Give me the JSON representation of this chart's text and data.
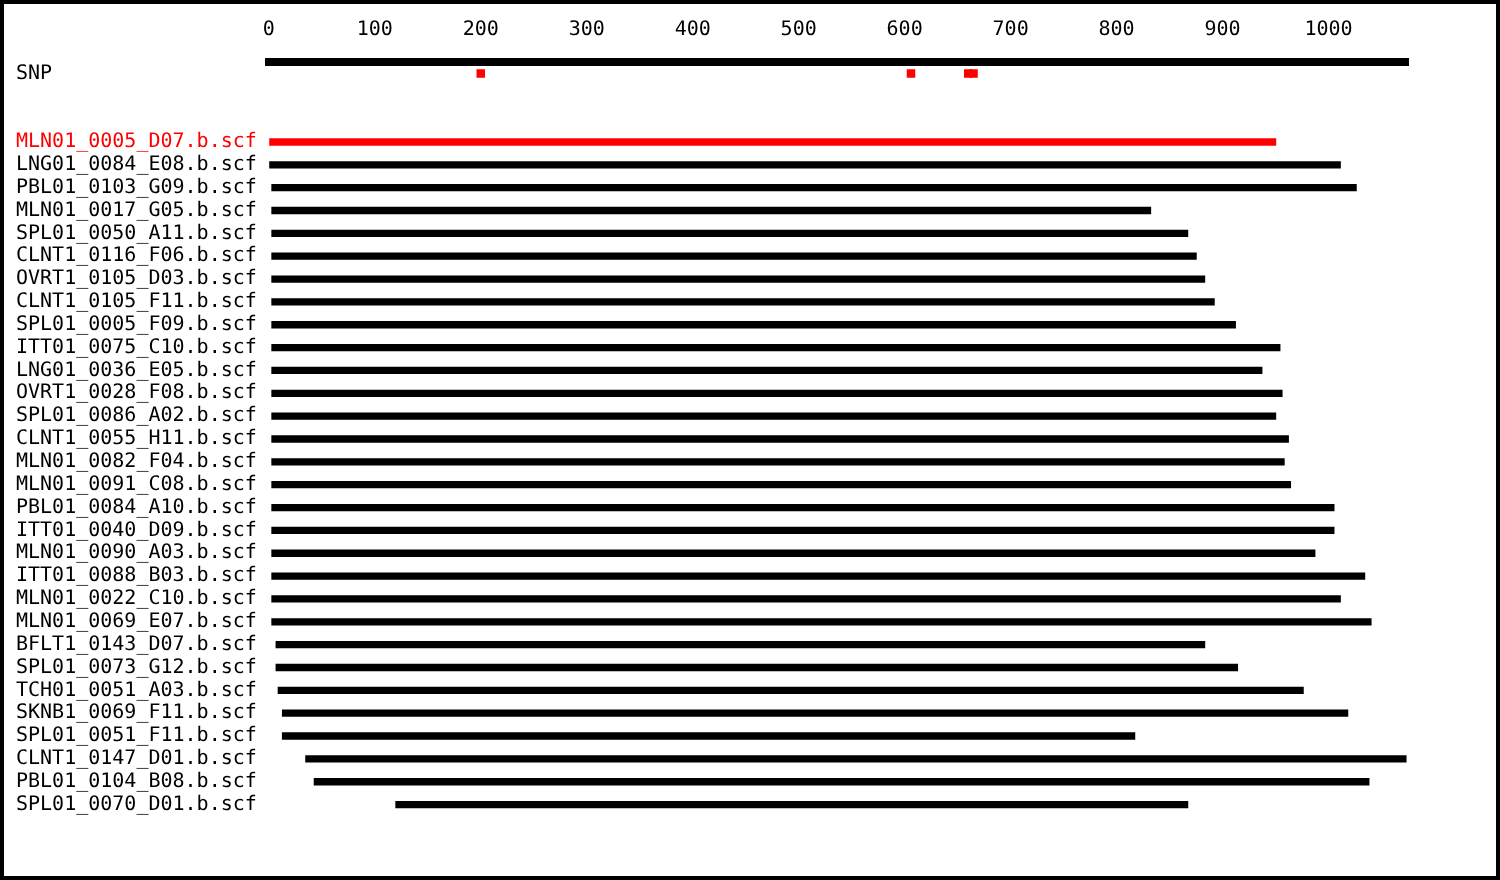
{
  "chart_data": {
    "type": "bar",
    "orientation": "horizontal",
    "grid": false,
    "legend": false,
    "marker": "square",
    "categories": [
      "SNP",
      null,
      null,
      "MLN01_0005_D07.b.scf",
      "LNG01_0084_E08.b.scf",
      "PBL01_0103_G09.b.scf",
      "MLN01_0017_G05.b.scf",
      "SPL01_0050_A11.b.scf",
      "CLNT1_0116_F06.b.scf",
      "OVRT1_0105_D03.b.scf",
      "CLNT1_0105_F11.b.scf",
      "SPL01_0005_F09.b.scf",
      "ITT01_0075_C10.b.scf",
      "LNG01_0036_E05.b.scf",
      "OVRT1_0028_F08.b.scf",
      "SPL01_0086_A02.b.scf",
      "CLNT1_0055_H11.b.scf",
      "MLN01_0082_F04.b.scf",
      "MLN01_0091_C08.b.scf",
      "PBL01_0084_A10.b.scf",
      "ITT01_0040_D09.b.scf",
      "MLN01_0090_A03.b.scf",
      "ITT01_0088_B03.b.scf",
      "MLN01_0022_C10.b.scf",
      "MLN01_0069_E07.b.scf",
      "BFLT1_0143_D07.b.scf",
      "SPL01_0073_G12.b.scf",
      "TCH01_0051_A03.b.scf",
      "SKNB1_0069_F11.b.scf",
      "SPL01_0051_F11.b.scf",
      "CLNT1_0147_D01.b.scf",
      "PBL01_0104_B08.b.scf",
      "SPL01_0070_D01.b.scf"
    ],
    "xlim": [
      0,
      1075
    ],
    "xticks": [
      0,
      100,
      200,
      300,
      400,
      500,
      600,
      700,
      800,
      900,
      1000
    ],
    "series": [
      {
        "base": [
          null,
          null,
          null,
          1,
          1,
          3,
          3,
          3,
          3,
          3,
          3,
          3,
          3,
          3,
          3,
          3,
          3,
          3,
          3,
          3,
          3,
          3,
          3,
          3,
          3,
          7,
          7,
          9,
          13,
          13,
          35,
          43,
          120
        ],
        "values": [
          null,
          null,
          null,
          949,
          1010,
          1023,
          829,
          864,
          872,
          880,
          889,
          909,
          951,
          934,
          953,
          947,
          959,
          955,
          961,
          1002,
          1002,
          984,
          1031,
          1008,
          1037,
          876,
          907,
          967,
          1005,
          804,
          1038,
          995,
          747
        ],
        "colors": [
          "#000000",
          "#000000",
          "#000000",
          "#ff0000",
          "#000000",
          "#000000",
          "#000000",
          "#000000",
          "#000000",
          "#000000",
          "#000000",
          "#000000",
          "#000000",
          "#000000",
          "#000000",
          "#000000",
          "#000000",
          "#000000",
          "#000000",
          "#000000",
          "#000000",
          "#000000",
          "#000000",
          "#000000",
          "#000000",
          "#000000",
          "#000000",
          "#000000",
          "#000000",
          "#000000",
          "#000000",
          "#000000",
          "#000000"
        ]
      },
      {
        "type": "scatter",
        "color": "#ff0000",
        "x": [
          "SNP",
          "SNP",
          "SNP",
          "SNP"
        ],
        "values": [
          200,
          606,
          660,
          665
        ]
      }
    ]
  }
}
